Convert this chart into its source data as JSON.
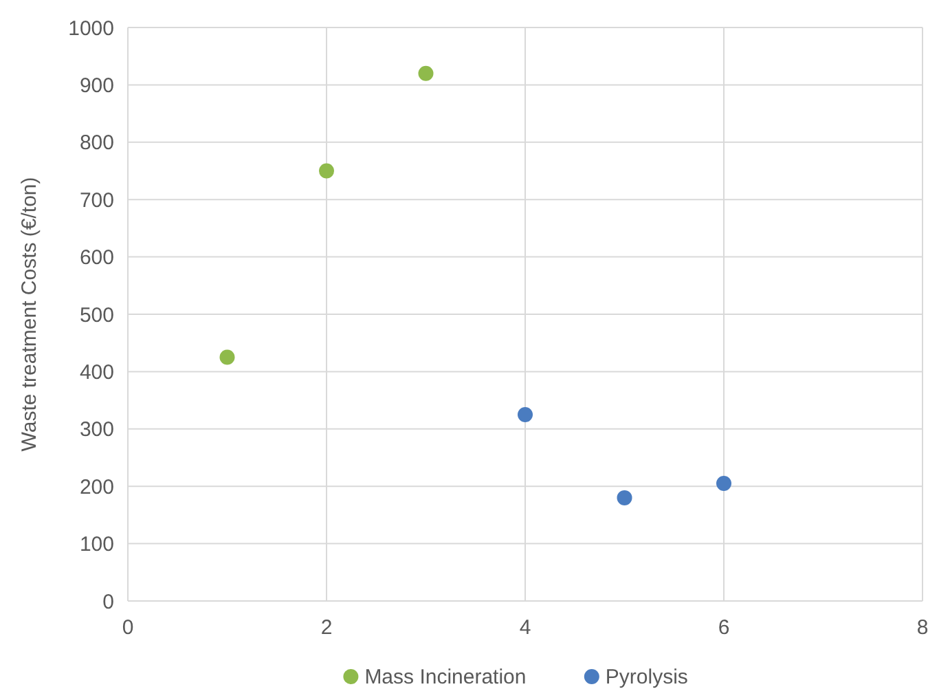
{
  "chart_data": {
    "type": "scatter",
    "ylabel": "Waste treatment Costs (€/ton)",
    "xlim": [
      0,
      8
    ],
    "xticks": [
      0,
      2,
      4,
      6,
      8
    ],
    "ylim": [
      0,
      1000
    ],
    "yticks": [
      0,
      100,
      200,
      300,
      400,
      500,
      600,
      700,
      800,
      900,
      1000
    ],
    "grid": true,
    "legend": "bottom",
    "marker": "circle",
    "series": [
      {
        "name": "Mass Incineration",
        "color": "#8fba4b",
        "x": [
          1,
          2,
          3
        ],
        "values": [
          425,
          750,
          920
        ]
      },
      {
        "name": "Pyrolysis",
        "color": "#4a7cc0",
        "x": [
          4,
          5,
          6
        ],
        "values": [
          325,
          180,
          205
        ]
      }
    ]
  }
}
